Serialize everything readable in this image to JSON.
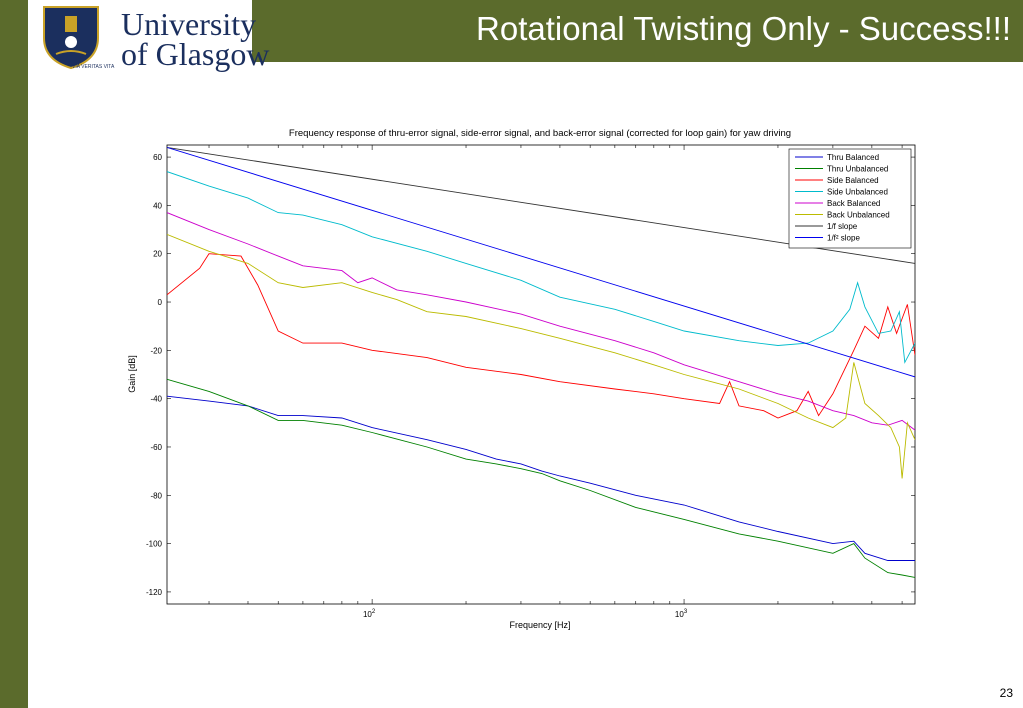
{
  "slide": {
    "title": "Rotational Twisting Only - Success!!!",
    "page_number": "23"
  },
  "logo": {
    "line1": "University",
    "line2": "of Glasgow",
    "motto": "VIA VERITAS VITA",
    "colors": {
      "navy": "#1b2f5e",
      "gold": "#c9a227"
    }
  },
  "theme": {
    "bar_color": "#5b6b2c"
  },
  "chart_data": {
    "type": "line",
    "title": "Frequency response of thru-error signal, side-error signal, and back-error signal (corrected for loop gain) for yaw driving",
    "xlabel": "Frequency [Hz]",
    "ylabel": "Gain [dB]",
    "xscale": "log",
    "xlim": [
      22,
      5500
    ],
    "ylim": [
      -125,
      65
    ],
    "yticks": [
      60,
      40,
      20,
      0,
      -20,
      -40,
      -60,
      -80,
      -100,
      -120
    ],
    "xticks": [
      {
        "value": 100,
        "base": "10",
        "exp": "2"
      },
      {
        "value": 1000,
        "base": "10",
        "exp": "3"
      }
    ],
    "legend_position": "top-right",
    "grid": false,
    "series": [
      {
        "name": "Thru Balanced",
        "color": "#0000cc",
        "points": [
          [
            22,
            -39
          ],
          [
            30,
            -41
          ],
          [
            40,
            -43
          ],
          [
            50,
            -47
          ],
          [
            60,
            -47
          ],
          [
            80,
            -48
          ],
          [
            100,
            -52
          ],
          [
            150,
            -57
          ],
          [
            200,
            -61
          ],
          [
            250,
            -65
          ],
          [
            300,
            -67
          ],
          [
            350,
            -70
          ],
          [
            400,
            -72
          ],
          [
            500,
            -75
          ],
          [
            700,
            -80
          ],
          [
            1000,
            -84
          ],
          [
            1500,
            -91
          ],
          [
            2000,
            -95
          ],
          [
            3000,
            -100
          ],
          [
            3500,
            -99
          ],
          [
            3800,
            -104
          ],
          [
            4500,
            -107
          ],
          [
            5500,
            -107
          ]
        ]
      },
      {
        "name": "Thru Unbalanced",
        "color": "#008000",
        "points": [
          [
            22,
            -32
          ],
          [
            30,
            -37
          ],
          [
            40,
            -43
          ],
          [
            50,
            -49
          ],
          [
            60,
            -49
          ],
          [
            80,
            -51
          ],
          [
            100,
            -54
          ],
          [
            150,
            -60
          ],
          [
            200,
            -65
          ],
          [
            250,
            -67
          ],
          [
            300,
            -69
          ],
          [
            350,
            -71
          ],
          [
            400,
            -74
          ],
          [
            500,
            -78
          ],
          [
            700,
            -85
          ],
          [
            1000,
            -90
          ],
          [
            1500,
            -96
          ],
          [
            2000,
            -99
          ],
          [
            3000,
            -104
          ],
          [
            3500,
            -100
          ],
          [
            3800,
            -106
          ],
          [
            4500,
            -112
          ],
          [
            5000,
            -113
          ],
          [
            5500,
            -114
          ]
        ]
      },
      {
        "name": "Side Balanced",
        "color": "#ff0000",
        "points": [
          [
            22,
            3
          ],
          [
            28,
            14
          ],
          [
            30,
            20
          ],
          [
            38,
            19
          ],
          [
            43,
            7
          ],
          [
            50,
            -12
          ],
          [
            60,
            -17
          ],
          [
            80,
            -17
          ],
          [
            100,
            -20
          ],
          [
            150,
            -23
          ],
          [
            200,
            -27
          ],
          [
            300,
            -30
          ],
          [
            400,
            -33
          ],
          [
            600,
            -36
          ],
          [
            800,
            -38
          ],
          [
            1000,
            -40
          ],
          [
            1300,
            -42
          ],
          [
            1400,
            -33
          ],
          [
            1500,
            -43
          ],
          [
            1800,
            -45
          ],
          [
            2000,
            -48
          ],
          [
            2300,
            -45
          ],
          [
            2500,
            -37
          ],
          [
            2700,
            -47
          ],
          [
            3000,
            -38
          ],
          [
            3500,
            -20
          ],
          [
            3800,
            -10
          ],
          [
            4200,
            -15
          ],
          [
            4500,
            -2
          ],
          [
            4800,
            -13
          ],
          [
            5200,
            -1
          ],
          [
            5500,
            -22
          ]
        ]
      },
      {
        "name": "Side Unbalanced",
        "color": "#00bbcc",
        "points": [
          [
            22,
            54
          ],
          [
            30,
            48
          ],
          [
            40,
            43
          ],
          [
            50,
            37
          ],
          [
            60,
            36
          ],
          [
            80,
            32
          ],
          [
            100,
            27
          ],
          [
            150,
            21
          ],
          [
            200,
            16
          ],
          [
            300,
            9
          ],
          [
            400,
            2
          ],
          [
            600,
            -3
          ],
          [
            800,
            -8
          ],
          [
            1000,
            -12
          ],
          [
            1500,
            -16
          ],
          [
            2000,
            -18
          ],
          [
            2500,
            -17
          ],
          [
            3000,
            -12
          ],
          [
            3400,
            -3
          ],
          [
            3600,
            8
          ],
          [
            3800,
            -2
          ],
          [
            4200,
            -13
          ],
          [
            4600,
            -12
          ],
          [
            4900,
            -4
          ],
          [
            5100,
            -25
          ],
          [
            5500,
            -17
          ]
        ]
      },
      {
        "name": "Back Balanced",
        "color": "#cc00cc",
        "points": [
          [
            22,
            37
          ],
          [
            30,
            30
          ],
          [
            40,
            24
          ],
          [
            50,
            19
          ],
          [
            60,
            15
          ],
          [
            80,
            13
          ],
          [
            90,
            8
          ],
          [
            100,
            10
          ],
          [
            120,
            5
          ],
          [
            150,
            3
          ],
          [
            200,
            0
          ],
          [
            300,
            -5
          ],
          [
            400,
            -10
          ],
          [
            600,
            -16
          ],
          [
            800,
            -21
          ],
          [
            1000,
            -26
          ],
          [
            1500,
            -33
          ],
          [
            2000,
            -38
          ],
          [
            2500,
            -41
          ],
          [
            3000,
            -45
          ],
          [
            3500,
            -47
          ],
          [
            4000,
            -50
          ],
          [
            4500,
            -51
          ],
          [
            5000,
            -49
          ],
          [
            5500,
            -53
          ]
        ]
      },
      {
        "name": "Back Unbalanced",
        "color": "#bbbb00",
        "points": [
          [
            22,
            28
          ],
          [
            30,
            21
          ],
          [
            40,
            16
          ],
          [
            50,
            8
          ],
          [
            60,
            6
          ],
          [
            80,
            8
          ],
          [
            100,
            4
          ],
          [
            120,
            1
          ],
          [
            150,
            -4
          ],
          [
            200,
            -6
          ],
          [
            300,
            -11
          ],
          [
            400,
            -15
          ],
          [
            600,
            -21
          ],
          [
            800,
            -26
          ],
          [
            1000,
            -30
          ],
          [
            1500,
            -36
          ],
          [
            2000,
            -42
          ],
          [
            2500,
            -48
          ],
          [
            3000,
            -52
          ],
          [
            3300,
            -48
          ],
          [
            3500,
            -25
          ],
          [
            3800,
            -42
          ],
          [
            4200,
            -47
          ],
          [
            4600,
            -52
          ],
          [
            4900,
            -60
          ],
          [
            5000,
            -73
          ],
          [
            5200,
            -50
          ],
          [
            5500,
            -57
          ]
        ]
      },
      {
        "name": "1/f slope",
        "color": "#333333",
        "points": [
          [
            22,
            64
          ],
          [
            5500,
            16
          ]
        ]
      },
      {
        "name": "1/f² slope",
        "color": "#0000ee",
        "points": [
          [
            22,
            64
          ],
          [
            5500,
            -31
          ]
        ]
      }
    ]
  }
}
